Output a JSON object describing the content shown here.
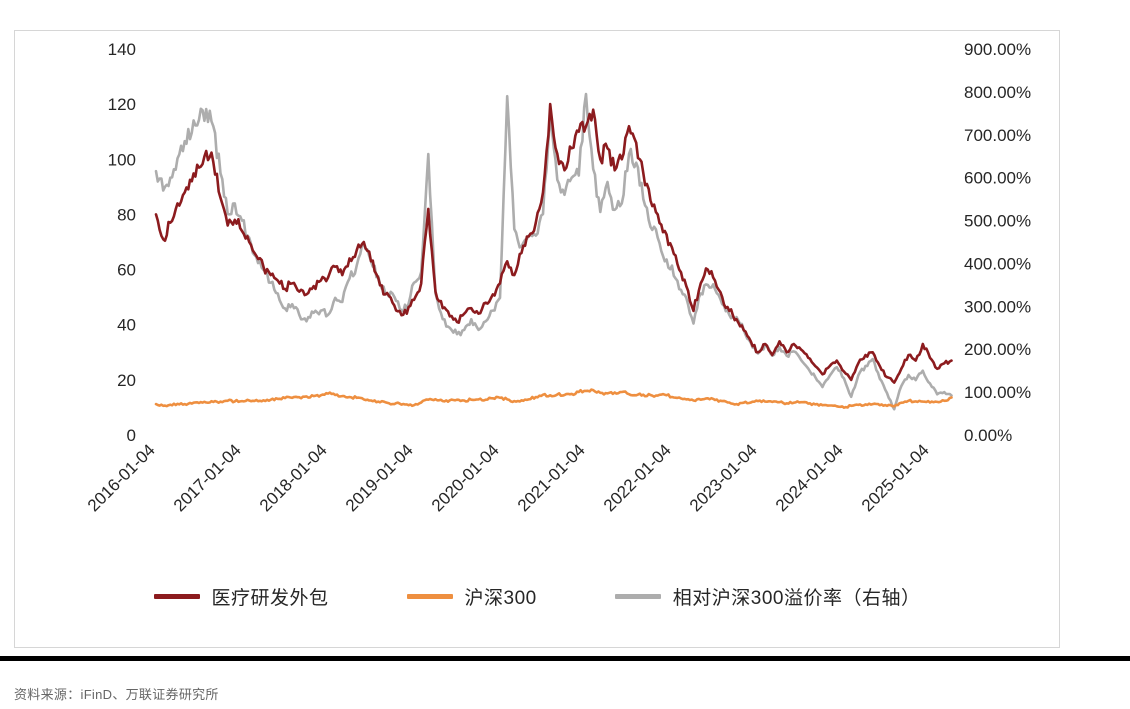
{
  "footer": {
    "source": "资料来源：iFinD、万联证券研究所"
  },
  "chart_data": {
    "type": "line",
    "title": "",
    "x_start": "2016-01",
    "x_frequency": "monthly",
    "x_tick_labels": [
      "2016-01-04",
      "2017-01-04",
      "2018-01-04",
      "2019-01-04",
      "2020-01-04",
      "2021-01-04",
      "2022-01-04",
      "2023-01-04",
      "2024-01-04",
      "2025-01-04"
    ],
    "left_axis": {
      "min": 0,
      "max": 140,
      "ticks": [
        140,
        120,
        100,
        80,
        60,
        40,
        20,
        0
      ]
    },
    "right_axis": {
      "min": 0,
      "max": 900,
      "tick_values": [
        900,
        800,
        700,
        600,
        500,
        400,
        300,
        200,
        100,
        0
      ],
      "tick_labels": [
        "900.00%",
        "800.00%",
        "700.00%",
        "600.00%",
        "500.00%",
        "400.00%",
        "300.00%",
        "200.00%",
        "100.00%",
        "0.00%"
      ]
    },
    "grid": "off",
    "legend_position": "bottom",
    "series": [
      {
        "id": "medical-rd-outsourcing",
        "name": "医疗研发外包",
        "axis": "left",
        "color": "#8C1B1E",
        "noise": 0.03,
        "seed": 11,
        "values": [
          80,
          71,
          77,
          84,
          88,
          92,
          97,
          103,
          99,
          86,
          76,
          78,
          74,
          70,
          65,
          61,
          58,
          56,
          53,
          55,
          52,
          51,
          54,
          56,
          57,
          61,
          58,
          64,
          67,
          70,
          63,
          57,
          51,
          48,
          45,
          44,
          49,
          55,
          82,
          52,
          46,
          43,
          41,
          44,
          46,
          44,
          48,
          51,
          55,
          63,
          58,
          66,
          72,
          77,
          88,
          120,
          102,
          96,
          104,
          110,
          112,
          118,
          100,
          104,
          96,
          100,
          112,
          106,
          95,
          85,
          80,
          74,
          68,
          60,
          54,
          45,
          55,
          60,
          56,
          50,
          45,
          42,
          38,
          34,
          30,
          33,
          29,
          34,
          30,
          33,
          31,
          28,
          25,
          22,
          25,
          27,
          23,
          20,
          26,
          29,
          30,
          25,
          21,
          19,
          24,
          29,
          27,
          33,
          28,
          24,
          26,
          27
        ]
      },
      {
        "id": "csi300",
        "name": "沪深300",
        "axis": "left",
        "color": "#EE8F40",
        "noise": 0.035,
        "seed": 29,
        "values": [
          11.2,
          10.6,
          11.0,
          11.3,
          11.2,
          11.4,
          11.6,
          11.8,
          12.0,
          12.1,
          12.4,
          12.2,
          12.3,
          12.5,
          12.7,
          12.6,
          12.8,
          13.1,
          13.4,
          13.5,
          13.7,
          14.0,
          14.1,
          14.4,
          15.0,
          14.5,
          14.1,
          13.8,
          13.5,
          12.9,
          12.5,
          12.1,
          11.9,
          11.2,
          11.4,
          11.1,
          10.8,
          11.8,
          12.8,
          13.0,
          12.3,
          12.6,
          12.8,
          12.5,
          12.8,
          12.9,
          12.8,
          13.3,
          13.5,
          12.9,
          12.3,
          12.6,
          12.9,
          13.8,
          14.6,
          14.4,
          14.7,
          14.5,
          14.9,
          15.6,
          16.0,
          16.3,
          15.3,
          15.1,
          15.4,
          15.6,
          14.8,
          14.4,
          14.6,
          14.5,
          14.3,
          14.6,
          13.8,
          13.6,
          12.9,
          12.5,
          12.8,
          13.3,
          12.7,
          12.3,
          11.8,
          11.2,
          11.7,
          11.8,
          12.3,
          12.1,
          12.0,
          11.9,
          11.5,
          11.7,
          11.9,
          11.4,
          11.1,
          10.8,
          10.7,
          10.4,
          9.9,
          10.6,
          10.9,
          11.1,
          11.2,
          10.8,
          10.6,
          10.4,
          11.7,
          12.4,
          12.2,
          12.1,
          11.8,
          12.0,
          12.4,
          13.6
        ]
      },
      {
        "id": "premium-vs-csi300",
        "name": "相对沪深300溢价率（右轴）",
        "axis": "right",
        "color": "#ADADAD",
        "noise": 0.03,
        "seed": 47,
        "values": [
          615,
          570,
          600,
          645,
          685,
          705,
          735,
          760,
          720,
          610,
          515,
          540,
          500,
          460,
          415,
          385,
          355,
          330,
          295,
          305,
          280,
          265,
          285,
          290,
          280,
          320,
          310,
          365,
          395,
          445,
          405,
          370,
          330,
          330,
          295,
          295,
          355,
          380,
          655,
          330,
          270,
          250,
          235,
          245,
          270,
          245,
          265,
          290,
          320,
          790,
          480,
          440,
          465,
          465,
          515,
          735,
          595,
          560,
          600,
          605,
          795,
          620,
          520,
          590,
          525,
          540,
          655,
          635,
          550,
          485,
          460,
          405,
          395,
          340,
          320,
          260,
          330,
          350,
          340,
          305,
          280,
          275,
          245,
          215,
          190,
          210,
          185,
          205,
          185,
          195,
          175,
          155,
          135,
          112,
          138,
          158,
          132,
          89,
          139,
          161,
          177,
          131,
          98,
          60,
          114,
          140,
          128,
          150,
          120,
          95,
          100,
          92
        ]
      }
    ]
  }
}
